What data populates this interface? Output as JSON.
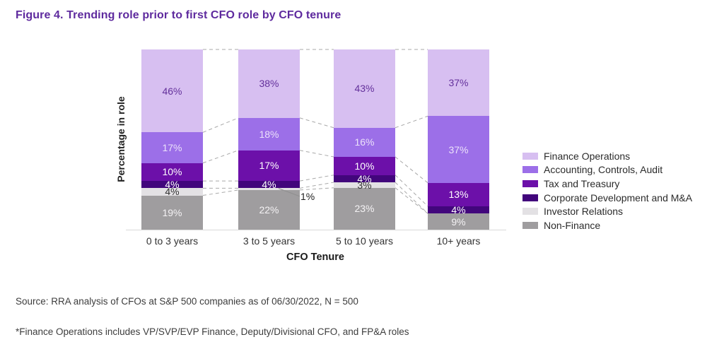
{
  "title": "Figure 4. Trending role prior to first CFO role by CFO tenure",
  "source": "Source: RRA analysis of CFOs at S&P 500 companies as of 06/30/2022, N = 500",
  "footnote": "*Finance Operations includes VP/SVP/EVP Finance, Deputy/Divisional CFO, and FP&A roles",
  "chart_data": {
    "type": "bar",
    "stacked": true,
    "title": "Figure 4. Trending role prior to first CFO role by CFO tenure",
    "xlabel": "CFO Tenure",
    "ylabel": "Percentage in role",
    "value_suffix": "%",
    "legend_position": "right",
    "connectors": "dashed",
    "categories": [
      "0 to 3 years",
      "3 to 5 years",
      "5 to 10 years",
      "10+ years"
    ],
    "series": [
      {
        "name": "Finance Operations",
        "color": "#d7bff1",
        "label_color": "#63309b",
        "values": [
          46,
          38,
          43,
          37
        ]
      },
      {
        "name": "Accounting, Controls, Audit",
        "color": "#9c6fe8",
        "label_color": "#ece2fa",
        "values": [
          17,
          18,
          16,
          37
        ]
      },
      {
        "name": "Tax and Treasury",
        "color": "#6c10a9",
        "label_color": "#ffffff",
        "values": [
          10,
          17,
          10,
          13
        ]
      },
      {
        "name": "Corporate Development and M&A",
        "color": "#42067c",
        "label_color": "#ffffff",
        "values": [
          4,
          4,
          4,
          4
        ]
      },
      {
        "name": "Investor Relations",
        "color": "#e3e1e4",
        "label_color": "#333333",
        "values": [
          4,
          1,
          3,
          0
        ]
      },
      {
        "name": "Non-Finance",
        "color": "#9f9d9f",
        "label_color": "#f4f2f4",
        "values": [
          19,
          22,
          23,
          9
        ]
      }
    ],
    "colors": {
      "title_text": "#5e2a9e",
      "connector_line": "#a9a9a9",
      "leader_line": "#8f8f8f",
      "axis_line": "#d9d9d9"
    }
  }
}
